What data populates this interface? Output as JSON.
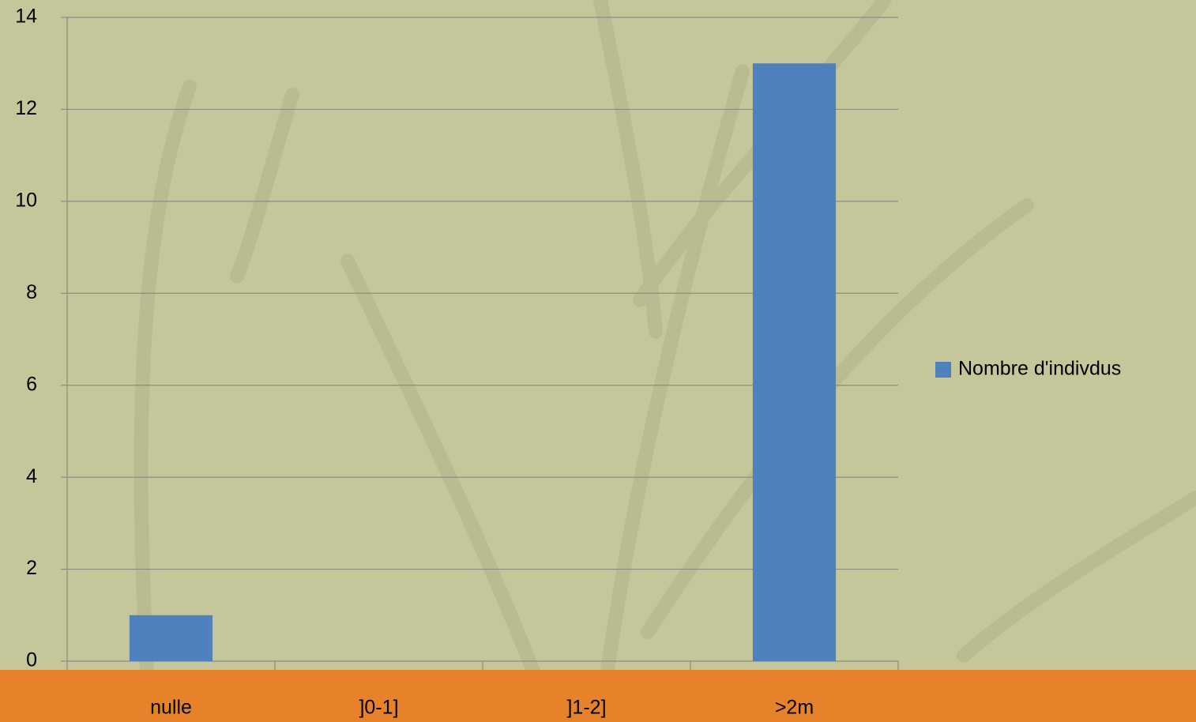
{
  "chart_data": {
    "type": "bar",
    "categories": [
      "nulle",
      "]0-1]",
      "]1-2]",
      ">2m"
    ],
    "series": [
      {
        "name": "Nombre d'indivdus",
        "color": "#4f81bd",
        "values": [
          1,
          0,
          0,
          13
        ]
      }
    ],
    "ylim": [
      0,
      14
    ],
    "yticks": [
      0,
      2,
      4,
      6,
      8,
      10,
      12,
      14
    ],
    "grid": true,
    "legend": "right"
  }
}
